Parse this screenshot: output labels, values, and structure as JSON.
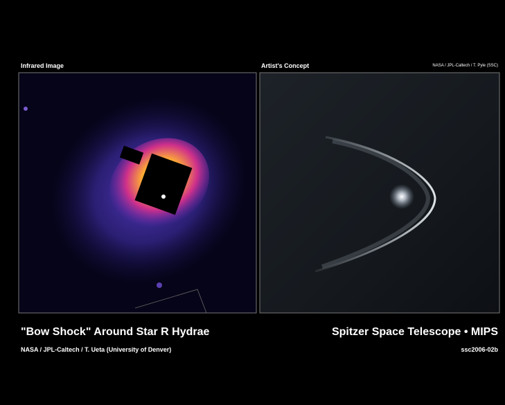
{
  "left_panel": {
    "label": "Infrared Image"
  },
  "right_panel": {
    "label": "Artist's Concept",
    "credit": "NASA / JPL-Caltech / T. Pyle (SSC)"
  },
  "caption": {
    "title": "\"Bow Shock\" Around Star R Hydrae",
    "credit": "NASA / JPL-Caltech / T. Ueta (University of Denver)",
    "mission": "Spitzer Space Telescope • MIPS",
    "id": "ssc2006-02b"
  }
}
